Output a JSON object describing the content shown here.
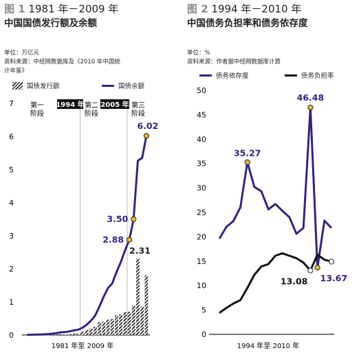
{
  "colors": {
    "series_main": "#2e2585",
    "series_black": "#111111",
    "bars": "#222222",
    "marker_gold": "#e7b634",
    "marker_white": "#ffffff",
    "phase_box": "#111111",
    "guide": "#9a9a9a"
  },
  "fig1": {
    "number": "图 1",
    "title": "1981 年－2009 年",
    "subtitle": "中国国债发行额及余额",
    "unit": "单位：万亿元",
    "source_line1": "资料来源：中经网数据库及《2010 年中国统",
    "source_line2": "计年鉴》",
    "legend_bars": "国债发行额",
    "legend_line": "国债余额",
    "xlabel": "1981 年至 2009 年",
    "phase1_line1": "第一",
    "phase1_line2": "阶段",
    "phase2_line1": "第二",
    "phase2_line2": "阶段",
    "phase3_line1": "第三",
    "phase3_line2": "阶段",
    "box_1994": "1994 年",
    "box_2005": "2005 年"
  },
  "fig2": {
    "number": "图 2",
    "title": "1994 年－2010 年",
    "subtitle": "中国债务负担率和债务依存度",
    "unit": "单位：%",
    "source": "资料来源：作者据中经网数据库计算",
    "legend_purple": "债务依存度",
    "legend_black": "债务负担率",
    "xlabel": "1994 年至 2010 年"
  },
  "chart_data": [
    {
      "type": "bar",
      "title": "1981 年－2009 年 中国国债发行额及余额",
      "xlabel": "1981 年至 2009 年",
      "ylabel": "",
      "ylim": [
        0,
        7
      ],
      "yticks": [
        0,
        1,
        2,
        3,
        4,
        5,
        6,
        7
      ],
      "categories": [
        "1981",
        "1982",
        "1983",
        "1984",
        "1985",
        "1986",
        "1987",
        "1988",
        "1989",
        "1990",
        "1991",
        "1992",
        "1993",
        "1994",
        "1995",
        "1996",
        "1997",
        "1998",
        "1999",
        "2000",
        "2001",
        "2002",
        "2003",
        "2004",
        "2005",
        "2006",
        "2007",
        "2008",
        "2009"
      ],
      "series": [
        {
          "name": "国债发行额",
          "kind": "bar",
          "values": [
            0.005,
            0.004,
            0.004,
            0.004,
            0.006,
            0.006,
            0.012,
            0.019,
            0.022,
            0.02,
            0.028,
            0.046,
            0.038,
            0.102,
            0.155,
            0.197,
            0.248,
            0.389,
            0.401,
            0.466,
            0.488,
            0.593,
            0.628,
            0.692,
            0.704,
            0.888,
            2.31,
            0.855,
            1.8
          ]
        },
        {
          "name": "国债余额",
          "kind": "line",
          "values": [
            0.005,
            0.008,
            0.012,
            0.016,
            0.022,
            0.028,
            0.04,
            0.06,
            0.08,
            0.09,
            0.11,
            0.14,
            0.16,
            0.22,
            0.31,
            0.43,
            0.59,
            0.86,
            1.16,
            1.42,
            1.56,
            1.9,
            2.2,
            2.56,
            2.88,
            3.5,
            5.27,
            5.35,
            6.02
          ]
        }
      ],
      "annotations": [
        {
          "label": "2.88",
          "category": "2005",
          "value": 2.88
        },
        {
          "label": "3.50",
          "category": "2006",
          "value": 3.5
        },
        {
          "label": "6.02",
          "category": "2009",
          "value": 6.02
        },
        {
          "label": "2.31",
          "category": "2007",
          "value": 2.31
        }
      ]
    },
    {
      "type": "line",
      "title": "1994 年－2010 年 中国债务负担率和债务依存度",
      "xlabel": "1994 年至 2010 年",
      "ylabel": "",
      "ylim": [
        0,
        50
      ],
      "yticks": [
        0,
        5,
        10,
        15,
        20,
        25,
        30,
        35,
        40,
        45,
        50
      ],
      "x": [
        1994,
        1995,
        1996,
        1997,
        1998,
        1999,
        2000,
        2001,
        2002,
        2003,
        2004,
        2005,
        2006,
        2007,
        2008,
        2009,
        2010
      ],
      "series": [
        {
          "name": "债务依存度",
          "values": [
            19.6,
            22.0,
            23.2,
            26.0,
            35.27,
            30.2,
            29.3,
            25.6,
            26.7,
            25.3,
            24.0,
            20.6,
            21.8,
            46.48,
            13.67,
            23.3,
            21.8
          ]
        },
        {
          "name": "债务负担率",
          "values": [
            4.4,
            5.4,
            6.3,
            7.0,
            9.5,
            12.2,
            13.9,
            14.4,
            16.1,
            16.6,
            16.1,
            15.6,
            14.7,
            13.08,
            16.3,
            15.3,
            14.9
          ]
        }
      ],
      "annotations": [
        {
          "label": "35.27",
          "x": 1998,
          "value": 35.27
        },
        {
          "label": "46.48",
          "x": 2007,
          "value": 46.48
        },
        {
          "label": "13.08",
          "x": 2007,
          "value": 13.08
        },
        {
          "label": "13.67",
          "x": 2008,
          "value": 13.67
        }
      ]
    }
  ]
}
